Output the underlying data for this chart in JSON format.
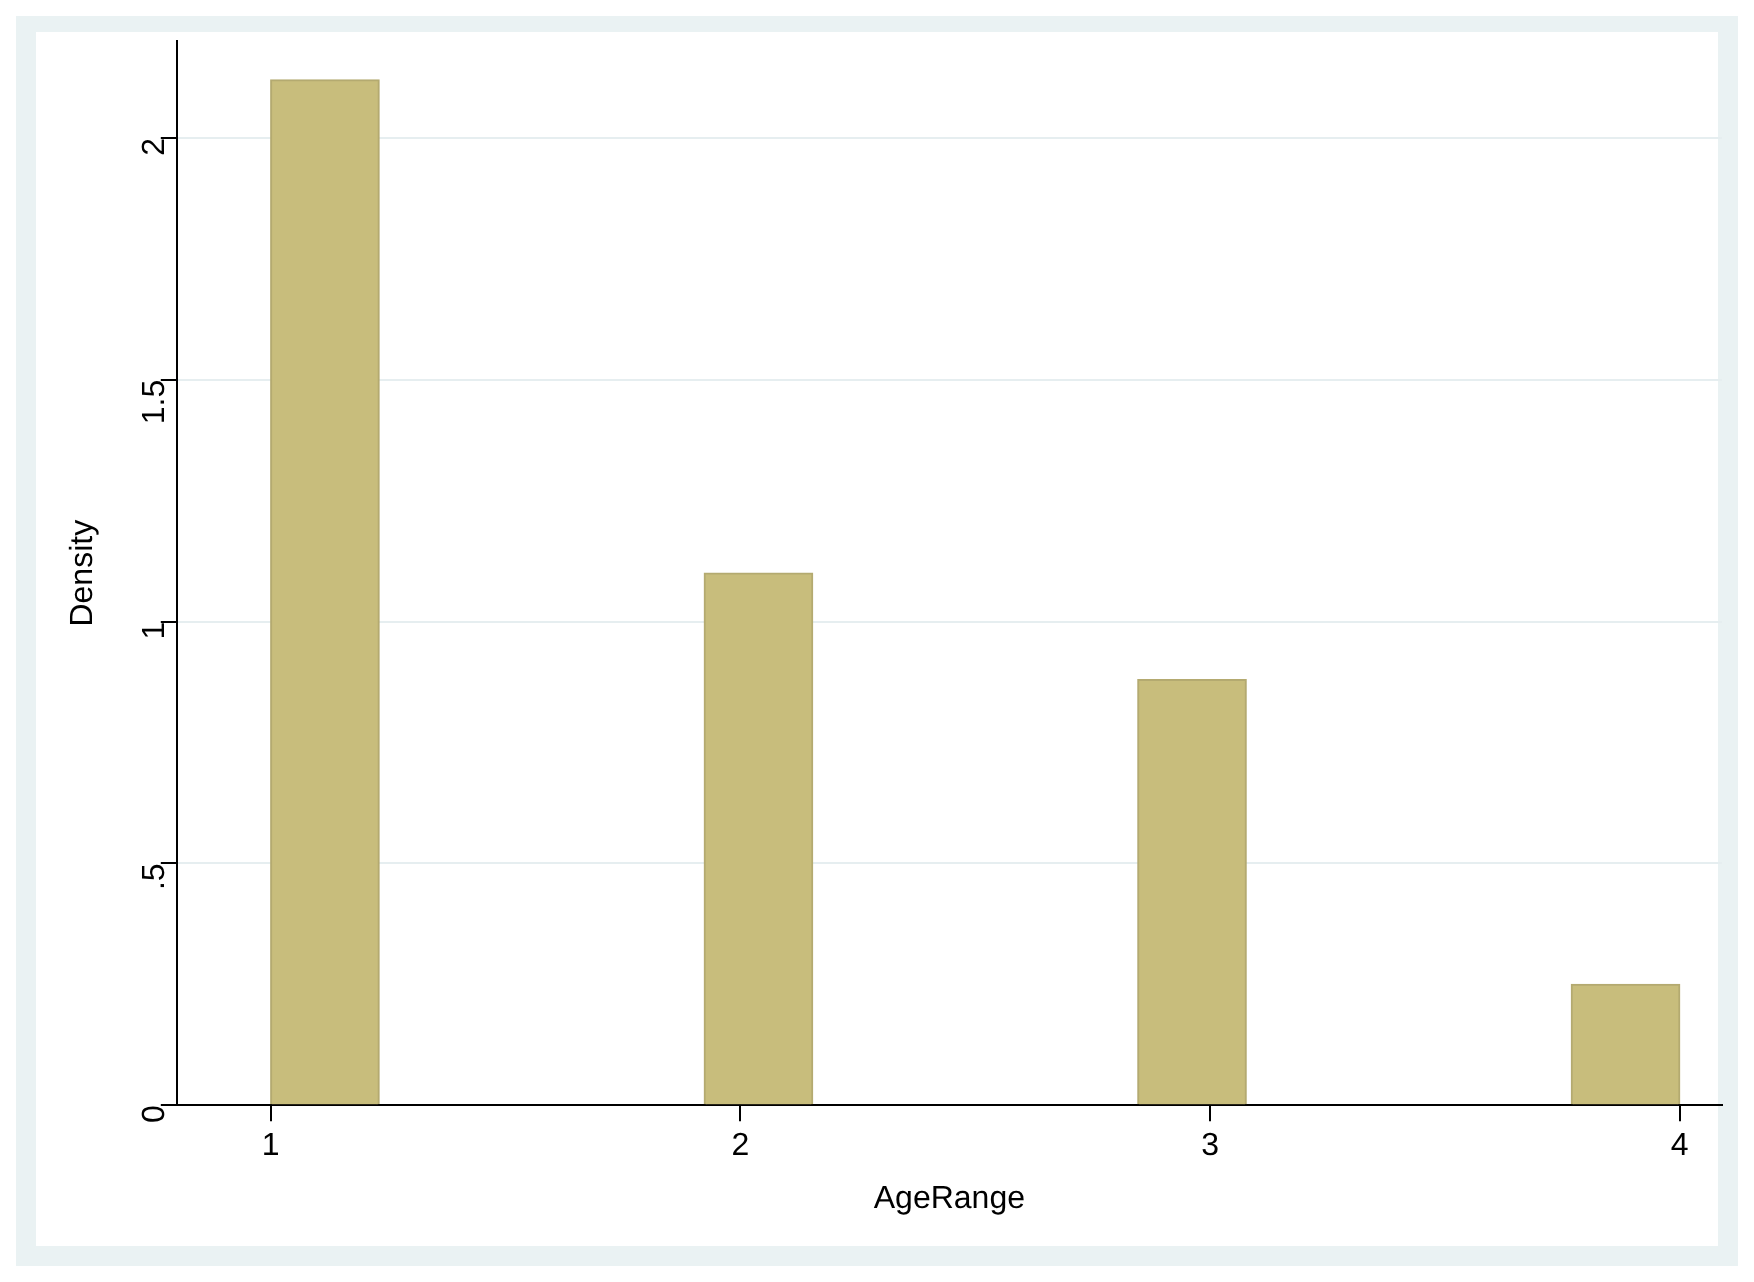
{
  "chart_data": {
    "type": "histogram",
    "xlabel": "AgeRange",
    "ylabel": "Density",
    "bins": [
      1,
      1.2308,
      1.4615,
      1.6923,
      1.9231,
      2.1538,
      2.3846,
      2.6154,
      2.8462,
      3.0769,
      3.3077,
      3.5385,
      3.7692,
      4
    ],
    "values": [
      2.12,
      0,
      0,
      0,
      1.1,
      0,
      0,
      0,
      0.88,
      0,
      0,
      0,
      0.25
    ],
    "color": "#c8bd7c",
    "xlim": [
      0.8,
      4.09
    ],
    "xticks": [
      1,
      2,
      3,
      4
    ],
    "ylim": [
      0,
      2.2
    ],
    "yticks": [
      0,
      {
        "value": 0.5,
        "label": ".5"
      },
      1,
      1.5,
      2
    ],
    "grid": "y"
  }
}
